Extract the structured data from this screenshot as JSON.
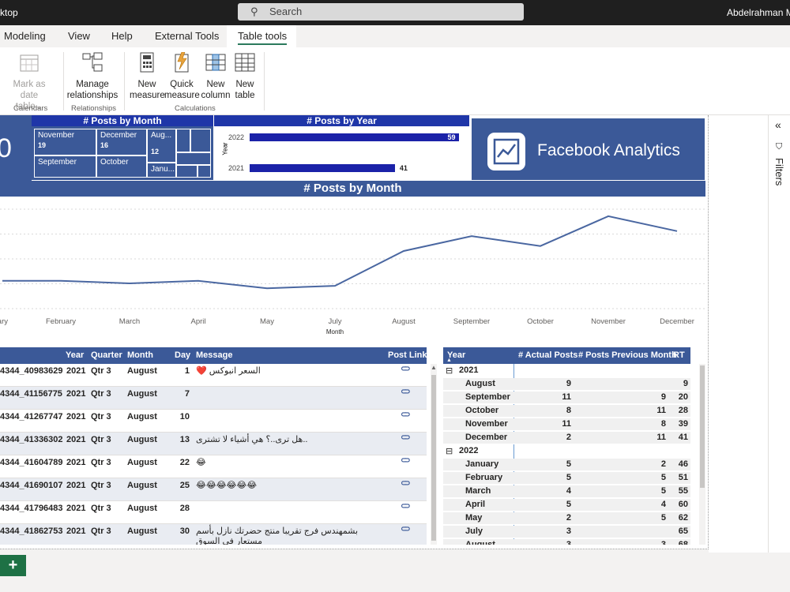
{
  "titlebar": {
    "app": "ktop",
    "search": "Search",
    "user": "Abdelrahman M"
  },
  "menu": [
    "Modeling",
    "View",
    "Help",
    "External Tools",
    "Table tools"
  ],
  "ribbon": {
    "mark_date": [
      "Mark as date",
      "table"
    ],
    "manage": [
      "Manage",
      "relationships"
    ],
    "new_measure": [
      "New",
      "measure"
    ],
    "quick_measure": [
      "Quick",
      "measure"
    ],
    "new_column": [
      "New",
      "column"
    ],
    "new_table": [
      "New",
      "table"
    ],
    "groups": [
      "Calendars",
      "Relationships",
      "Calculations"
    ]
  },
  "kpi_partial": "0",
  "treemap": {
    "title": "# Posts by Month",
    "cells": [
      {
        "label": "November",
        "value": "19"
      },
      {
        "label": "December",
        "value": "16"
      },
      {
        "label": "Aug...",
        "value": "12"
      },
      {
        "label": "September",
        "value": ""
      },
      {
        "label": "October",
        "value": ""
      },
      {
        "label": "Janu...",
        "value": ""
      }
    ]
  },
  "year_chart": {
    "title": "# Posts by Year",
    "axis": "Year",
    "bars": [
      {
        "year": "2022",
        "value": 59
      },
      {
        "year": "2021",
        "value": 41
      }
    ]
  },
  "logo": {
    "text": "Facebook Analytics"
  },
  "chart_data": {
    "type": "line",
    "title": "# Posts by Month",
    "xlabel": "Month",
    "categories": [
      "ary",
      "February",
      "March",
      "April",
      "May",
      "July",
      "August",
      "September",
      "October",
      "November",
      "December"
    ],
    "values": [
      4,
      4,
      3.5,
      4,
      2.5,
      3,
      10,
      13,
      11,
      17,
      14
    ],
    "ylim": [
      0,
      20
    ]
  },
  "posts_table": {
    "headers": [
      "",
      "Year",
      "Quarter",
      "Month",
      "Day",
      "Message",
      "Post Link"
    ],
    "rows": [
      {
        "id": "4344_40983629",
        "year": "2021",
        "q": "Qtr 3",
        "m": "August",
        "d": "1",
        "msg": "السعر انبوكس ❤️"
      },
      {
        "id": "4344_41156775",
        "year": "2021",
        "q": "Qtr 3",
        "m": "August",
        "d": "7",
        "msg": ""
      },
      {
        "id": "4344_41267747",
        "year": "2021",
        "q": "Qtr 3",
        "m": "August",
        "d": "10",
        "msg": ""
      },
      {
        "id": "4344_41336302",
        "year": "2021",
        "q": "Qtr 3",
        "m": "August",
        "d": "13",
        "msg": "..هل ترى..؟ هي أشياء لا تشترى"
      },
      {
        "id": "4344_41604789",
        "year": "2021",
        "q": "Qtr 3",
        "m": "August",
        "d": "22",
        "msg": "😂"
      },
      {
        "id": "4344_41690107",
        "year": "2021",
        "q": "Qtr 3",
        "m": "August",
        "d": "25",
        "msg": "😂😂😂😂😂😂"
      },
      {
        "id": "4344_41796483",
        "year": "2021",
        "q": "Qtr 3",
        "m": "August",
        "d": "28",
        "msg": ""
      },
      {
        "id": "4344_41862753",
        "year": "2021",
        "q": "Qtr 3",
        "m": "August",
        "d": "30",
        "msg": "بشمهندس فرج تقريبا منتج حضرتك نازل بأسم مستعار في السوق"
      }
    ]
  },
  "matrix": {
    "headers": [
      "Year",
      "# Actual Posts",
      "# Posts Previous Month",
      "RT"
    ],
    "groups": [
      {
        "year": "2021",
        "rows": [
          [
            "August",
            "9",
            "",
            "9"
          ],
          [
            "September",
            "11",
            "9",
            "20"
          ],
          [
            "October",
            "8",
            "11",
            "28"
          ],
          [
            "November",
            "11",
            "8",
            "39"
          ],
          [
            "December",
            "2",
            "11",
            "41"
          ]
        ]
      },
      {
        "year": "2022",
        "rows": [
          [
            "January",
            "5",
            "2",
            "46"
          ],
          [
            "February",
            "5",
            "5",
            "51"
          ],
          [
            "March",
            "4",
            "5",
            "55"
          ],
          [
            "April",
            "5",
            "4",
            "60"
          ],
          [
            "May",
            "2",
            "5",
            "62"
          ],
          [
            "July",
            "3",
            "",
            "65"
          ],
          [
            "August",
            "3",
            "3",
            "68"
          ]
        ]
      }
    ]
  },
  "filters_label": "Filters",
  "colors": {
    "header": "#3b5998",
    "bar": "#1b22a8",
    "line": "#4a67a1",
    "ribbon_accent": "#2b7a5d"
  }
}
